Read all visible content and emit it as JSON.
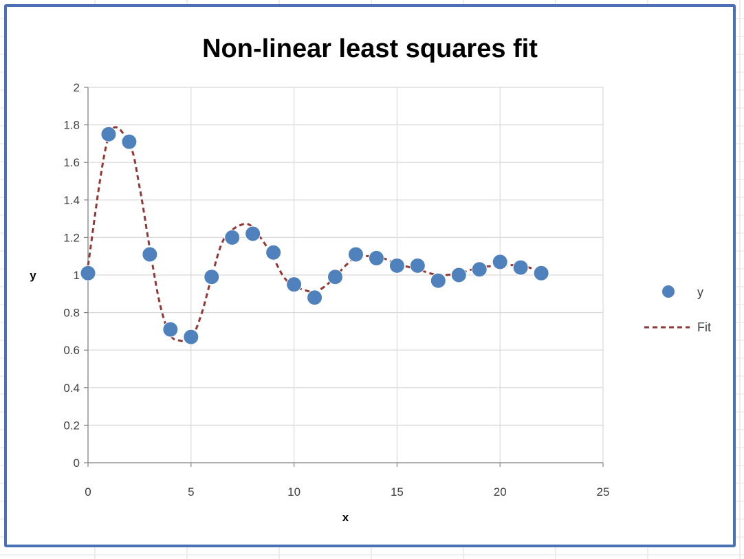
{
  "chart_data": {
    "type": "scatter",
    "title": "Non-linear least squares fit",
    "xlabel": "x",
    "ylabel": "y",
    "xlim": [
      0,
      25
    ],
    "ylim": [
      0,
      2
    ],
    "x_ticks": [
      0,
      5,
      10,
      15,
      20,
      25
    ],
    "y_ticks": [
      0,
      0.2,
      0.4,
      0.6,
      0.8,
      1,
      1.2,
      1.4,
      1.6,
      1.8,
      2
    ],
    "grid": true,
    "legend_position": "right",
    "series": [
      {
        "name": "y",
        "style": "markers",
        "color": "#4f81bd",
        "x": [
          0,
          1,
          2,
          3,
          4,
          5,
          6,
          7,
          8,
          9,
          10,
          11,
          12,
          13,
          14,
          15,
          16,
          17,
          18,
          19,
          20,
          21,
          22
        ],
        "y": [
          1.01,
          1.75,
          1.71,
          1.11,
          0.71,
          0.67,
          0.99,
          1.2,
          1.22,
          1.12,
          0.95,
          0.88,
          0.99,
          1.11,
          1.09,
          1.05,
          1.05,
          0.97,
          1.0,
          1.03,
          1.07,
          1.04,
          1.01
        ]
      },
      {
        "name": "Fit",
        "style": "dashed-line",
        "color": "#943634",
        "x": [
          0,
          1,
          2,
          2.5,
          3,
          3.5,
          4,
          4.5,
          5,
          5.5,
          6,
          6.5,
          7,
          7.5,
          7.8,
          8,
          8.5,
          9,
          9.5,
          10,
          10.5,
          11,
          11.5,
          12,
          12.5,
          13,
          14,
          15,
          16,
          17,
          18,
          19,
          20,
          21,
          22
        ],
        "y": [
          1.05,
          1.74,
          1.7,
          1.47,
          1.14,
          0.84,
          0.68,
          0.65,
          0.66,
          0.79,
          0.99,
          1.17,
          1.24,
          1.27,
          1.27,
          1.25,
          1.18,
          1.09,
          0.99,
          0.94,
          0.92,
          0.91,
          0.94,
          0.99,
          1.05,
          1.09,
          1.1,
          1.06,
          1.03,
          1.0,
          1.01,
          1.04,
          1.05,
          1.05,
          1.02
        ]
      }
    ]
  }
}
